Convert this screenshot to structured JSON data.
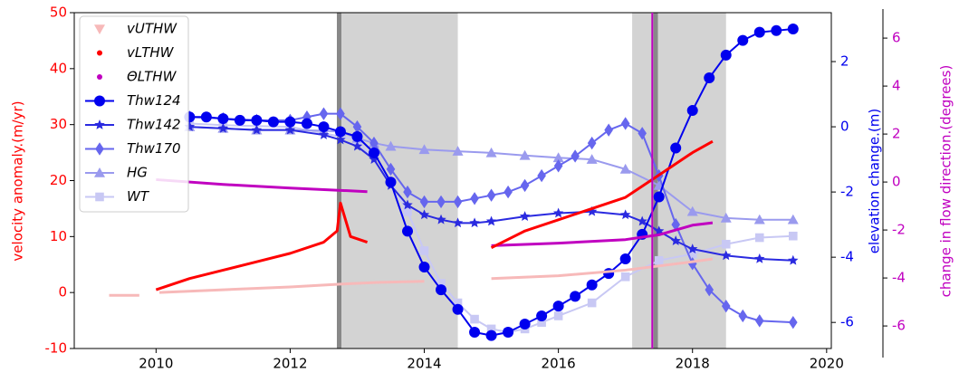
{
  "chart_data": {
    "type": "line",
    "ylabel": "velocity anomaly.(m/yr)",
    "y2label": "elevation change.(m)",
    "y3label": "change in flow direction.(degrees)",
    "xlim": [
      2008.78,
      2020.07
    ],
    "xticks": [
      2010,
      2012,
      2014,
      2016,
      2018,
      2020
    ],
    "ylim": [
      -10,
      50
    ],
    "yticks": [
      -10,
      0,
      10,
      20,
      30,
      40,
      50
    ],
    "y2lim": [
      -6.8,
      3.5
    ],
    "y2ticks": [
      -6,
      -4,
      -2,
      0,
      2
    ],
    "y3lim": [
      -6.94,
      7.06
    ],
    "y3ticks": [
      -6,
      -4,
      -2,
      0,
      2,
      4,
      6
    ],
    "shaded_spans": [
      [
        2012.73,
        2014.5
      ],
      [
        2017.1,
        2018.5
      ]
    ],
    "dark_lines": [
      2012.73,
      2017.45
    ],
    "reference_line": {
      "x": 2017.4,
      "color": "#c000c0"
    },
    "legend": "upper left",
    "series": [
      {
        "name": "vUTHW",
        "color": "#f7b9b9",
        "axis": "y",
        "marker": "tri_down",
        "line": false,
        "x": [
          2009.3,
          2009.75,
          2009.9,
          2010.05,
          2011,
          2012,
          2012.75,
          2013.3,
          2014,
          2014.5,
          2015,
          2016,
          2017,
          2018,
          2018.3
        ],
        "values": [
          -0.5,
          -0.5,
          null,
          0,
          0.5,
          1,
          1.5,
          1.8,
          2,
          null,
          2.5,
          3,
          4,
          5.5,
          6
        ]
      },
      {
        "name": "vLTHW",
        "color": "#ff0000",
        "axis": "y",
        "marker": "dot",
        "line": false,
        "x": [
          2010,
          2010.5,
          2011,
          2011.5,
          2012,
          2012.5,
          2012.7,
          2012.75,
          2012.9,
          2013.15,
          2014,
          2015,
          2015.5,
          2016,
          2016.5,
          2017,
          2017.5,
          2018,
          2018.3
        ],
        "values": [
          0.5,
          2.5,
          4,
          5.5,
          7,
          9,
          11,
          16,
          10,
          9,
          null,
          8,
          11,
          13,
          15,
          17,
          21,
          25,
          27
        ]
      },
      {
        "name": "ΘLTHW",
        "color": "#c000c0",
        "axis": "y3",
        "marker": "dot",
        "line": false,
        "x": [
          2010,
          2011,
          2012,
          2013.15,
          2014,
          2015,
          2016,
          2017,
          2017.5,
          2018,
          2018.3
        ],
        "values": [
          0.1,
          -0.1,
          -0.25,
          -0.4,
          null,
          -2.65,
          -2.55,
          -2.4,
          -2.2,
          -1.8,
          -1.7
        ]
      },
      {
        "name": "Thw124",
        "color": "#0000ee",
        "axis": "y2",
        "marker": "circle",
        "line": true,
        "x": [
          2010.5,
          2010.75,
          2011,
          2011.25,
          2011.5,
          2011.75,
          2012,
          2012.25,
          2012.5,
          2012.75,
          2013,
          2013.25,
          2013.5,
          2013.75,
          2014,
          2014.25,
          2014.5,
          2014.75,
          2015,
          2015.25,
          2015.5,
          2015.75,
          2016,
          2016.25,
          2016.5,
          2016.75,
          2017,
          2017.25,
          2017.5,
          2017.75,
          2018,
          2018.25,
          2018.5,
          2018.75,
          2019,
          2019.25,
          2019.5
        ],
        "values": [
          0.3,
          0.3,
          0.25,
          0.2,
          0.2,
          0.15,
          0.15,
          0.1,
          0.0,
          -0.15,
          -0.3,
          -0.8,
          -1.7,
          -3.2,
          -4.3,
          -5.0,
          -5.6,
          -6.3,
          -6.4,
          -6.3,
          -6.05,
          -5.8,
          -5.5,
          -5.2,
          -4.85,
          -4.5,
          -4.05,
          -3.3,
          -2.15,
          -0.65,
          0.5,
          1.5,
          2.2,
          2.65,
          2.9,
          2.95,
          3.0
        ]
      },
      {
        "name": "Thw142",
        "color": "#2a2ae0",
        "axis": "y2",
        "marker": "star",
        "line": true,
        "x": [
          2010.5,
          2011,
          2011.5,
          2012,
          2012.5,
          2012.75,
          2013,
          2013.25,
          2013.5,
          2013.75,
          2014,
          2014.25,
          2014.5,
          2014.75,
          2015,
          2015.5,
          2016,
          2016.5,
          2017,
          2017.25,
          2017.5,
          2017.75,
          2018,
          2018.5,
          2019,
          2019.5
        ],
        "values": [
          0.0,
          -0.05,
          -0.1,
          -0.1,
          -0.25,
          -0.4,
          -0.6,
          -1.0,
          -1.8,
          -2.4,
          -2.7,
          -2.85,
          -2.95,
          -2.95,
          -2.9,
          -2.75,
          -2.65,
          -2.6,
          -2.7,
          -2.9,
          -3.2,
          -3.5,
          -3.75,
          -3.95,
          -4.05,
          -4.1
        ]
      },
      {
        "name": "Thw170",
        "color": "#6666ee",
        "axis": "y2",
        "marker": "diamond",
        "line": true,
        "x": [
          2010.5,
          2011,
          2011.5,
          2012,
          2012.25,
          2012.5,
          2012.75,
          2013,
          2013.25,
          2013.5,
          2013.75,
          2014,
          2014.25,
          2014.5,
          2014.75,
          2015,
          2015.25,
          2015.5,
          2015.75,
          2016,
          2016.25,
          2016.5,
          2016.75,
          2017,
          2017.25,
          2017.5,
          2017.75,
          2018,
          2018.25,
          2018.5,
          2018.75,
          2019,
          2019.5
        ],
        "values": [
          0.3,
          0.25,
          0.2,
          0.2,
          0.3,
          0.4,
          0.4,
          0.0,
          -0.5,
          -1.3,
          -2.0,
          -2.3,
          -2.3,
          -2.3,
          -2.2,
          -2.1,
          -2.0,
          -1.8,
          -1.5,
          -1.2,
          -0.9,
          -0.5,
          -0.1,
          0.1,
          -0.2,
          -1.5,
          -3.0,
          -4.2,
          -5.0,
          -5.5,
          -5.8,
          -5.95,
          -6.0
        ]
      },
      {
        "name": "HG",
        "color": "#9a9aee",
        "axis": "y2",
        "marker": "triangle",
        "line": true,
        "x": [
          2010.5,
          2011,
          2011.5,
          2012,
          2012.5,
          2012.75,
          2013,
          2013.25,
          2013.5,
          2014,
          2014.5,
          2015,
          2015.5,
          2016,
          2016.5,
          2017,
          2017.5,
          2018,
          2018.5,
          2019,
          2019.5
        ],
        "values": [
          0.0,
          -0.05,
          -0.1,
          -0.1,
          -0.12,
          -0.15,
          -0.35,
          -0.5,
          -0.6,
          -0.7,
          -0.75,
          -0.8,
          -0.88,
          -0.95,
          -1.0,
          -1.3,
          -1.8,
          -2.6,
          -2.8,
          -2.85,
          -2.85
        ]
      },
      {
        "name": "WT",
        "color": "#c8c8f4",
        "axis": "y2",
        "marker": "square",
        "line": true,
        "x": [
          2010.5,
          2011,
          2012,
          2013,
          2013.5,
          2013.75,
          2014,
          2014.25,
          2014.5,
          2014.75,
          2015,
          2015.25,
          2015.5,
          2015.75,
          2016,
          2016.5,
          2017,
          2017.5,
          2018,
          2018.5,
          2019,
          2019.5
        ],
        "values": [
          0.1,
          0.05,
          0.0,
          -0.4,
          -1.7,
          -2.6,
          -3.8,
          -4.8,
          -5.4,
          -5.9,
          -6.2,
          -6.3,
          -6.2,
          -6.0,
          -5.8,
          -5.4,
          -4.6,
          -4.1,
          -3.9,
          -3.6,
          -3.4,
          -3.35
        ]
      }
    ]
  }
}
